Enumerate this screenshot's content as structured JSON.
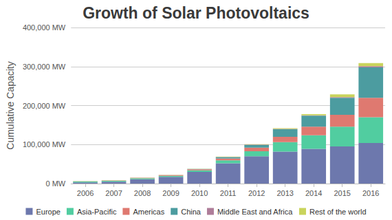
{
  "chart_data": {
    "type": "bar",
    "title": "Growth of Solar Photovoltaics",
    "y_label": "Cumulative Capacity",
    "categories": [
      "2006",
      "2007",
      "2008",
      "2009",
      "2010",
      "2011",
      "2012",
      "2013",
      "2014",
      "2015",
      "2016"
    ],
    "series": [
      {
        "name": "Europe",
        "color": "#6D78AD",
        "values": [
          3300,
          5000,
          11000,
          17000,
          30000,
          52000,
          70000,
          82000,
          89000,
          95000,
          104000
        ]
      },
      {
        "name": "Asia-Pacific",
        "color": "#51CDA0",
        "values": [
          1900,
          2100,
          2600,
          3000,
          4000,
          7500,
          13000,
          24000,
          35000,
          51000,
          66000
        ]
      },
      {
        "name": "Americas",
        "color": "#DF7970",
        "values": [
          500,
          700,
          1000,
          1500,
          2500,
          5000,
          9000,
          14000,
          22000,
          30000,
          50000
        ]
      },
      {
        "name": "China",
        "color": "#4C9CA0",
        "values": [
          100,
          100,
          100,
          300,
          800,
          3300,
          7000,
          19000,
          28000,
          44000,
          78000
        ]
      },
      {
        "name": "Middle East and Africa",
        "color": "#AE7D99",
        "values": [
          0,
          100,
          100,
          200,
          300,
          500,
          1000,
          1000,
          1000,
          1500,
          3000
        ]
      },
      {
        "name": "Rest of the world",
        "color": "#C9D45C",
        "values": [
          300,
          300,
          500,
          500,
          500,
          1000,
          1000,
          2000,
          3000,
          7000,
          8000
        ]
      }
    ],
    "ylim": [
      0,
      400000
    ],
    "yticks": [
      {
        "value": 0,
        "label": "0 MW"
      },
      {
        "value": 100000,
        "label": "100,000 MW"
      },
      {
        "value": 200000,
        "label": "200,000 MW"
      },
      {
        "value": 300000,
        "label": "300,000 MW"
      },
      {
        "value": 400000,
        "label": "400,000 MW"
      }
    ],
    "stacked": true,
    "grid": true,
    "legend": "bottom"
  }
}
